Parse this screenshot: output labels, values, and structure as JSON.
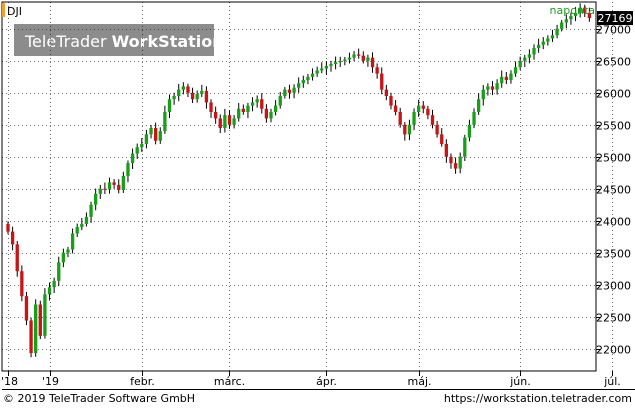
{
  "chart_data": {
    "type": "candlestick",
    "symbol": "DJI",
    "interval_label": "naponta",
    "watermark": {
      "prefix": "TeleTrader",
      "bold": "WorkStation"
    },
    "last_price_label": "27169",
    "ylim": [
      21650,
      27420
    ],
    "y_ticks": [
      {
        "v": 22000,
        "label": "22000"
      },
      {
        "v": 22500,
        "label": "22500"
      },
      {
        "v": 23000,
        "label": "23000"
      },
      {
        "v": 23500,
        "label": "23500"
      },
      {
        "v": 24000,
        "label": "24000"
      },
      {
        "v": 24500,
        "label": "24500"
      },
      {
        "v": 25000,
        "label": "25000"
      },
      {
        "v": 25500,
        "label": "25500"
      },
      {
        "v": 26000,
        "label": "26000"
      },
      {
        "v": 26500,
        "label": "26500"
      },
      {
        "v": 27000,
        "label": "27000"
      }
    ],
    "x_ticks": [
      {
        "bar": 0,
        "label": "'18"
      },
      {
        "bar": 9,
        "label": "'19"
      },
      {
        "bar": 29,
        "label": "febr."
      },
      {
        "bar": 48,
        "label": "márc."
      },
      {
        "bar": 69,
        "label": "ápr."
      },
      {
        "bar": 89,
        "label": "máj."
      },
      {
        "bar": 111,
        "label": "jún."
      },
      {
        "bar": 131,
        "label": "júl."
      }
    ],
    "footer_left": "© 2019 TeleTrader Software GmbH",
    "footer_right": "https://workstation.teletrader.com",
    "colors": {
      "up": "#17a017",
      "down": "#c81414",
      "wick": "#000000",
      "frame": "#000000",
      "interval": "#1e9e1e",
      "price_box": "#000000",
      "watermark_bg": "#8c8c8c"
    },
    "close": [
      23830,
      23630,
      23210,
      22820,
      22440,
      21930,
      22690,
      22200,
      22850,
      22960,
      23060,
      23350,
      23500,
      23550,
      23800,
      23900,
      23950,
      24060,
      24250,
      24420,
      24500,
      24490,
      24600,
      24560,
      24480,
      24700,
      24900,
      25050,
      25150,
      25200,
      25350,
      25450,
      25250,
      25400,
      25700,
      25900,
      25950,
      26050,
      26100,
      26000,
      25900,
      25980,
      26030,
      25850,
      25700,
      25600,
      25450,
      25650,
      25500,
      25600,
      25750,
      25700,
      25800,
      25850,
      25900,
      25750,
      25600,
      25700,
      25800,
      25950,
      26050,
      26000,
      26080,
      26150,
      26200,
      26250,
      26300,
      26350,
      26380,
      26420,
      26450,
      26480,
      26500,
      26520,
      26550,
      26600,
      26580,
      26500,
      26550,
      26400,
      26300,
      26050,
      25950,
      25800,
      25700,
      25500,
      25350,
      25500,
      25700,
      25800,
      25750,
      25650,
      25500,
      25350,
      25200,
      25000,
      24900,
      24815,
      25000,
      25300,
      25500,
      25700,
      25900,
      26050,
      26100,
      26050,
      26150,
      26250,
      26200,
      26300,
      26400,
      26500,
      26550,
      26600,
      26700,
      26750,
      26800,
      26850,
      26900,
      27000,
      27100,
      27150,
      27200,
      27250,
      27332,
      27250,
      27169
    ]
  }
}
